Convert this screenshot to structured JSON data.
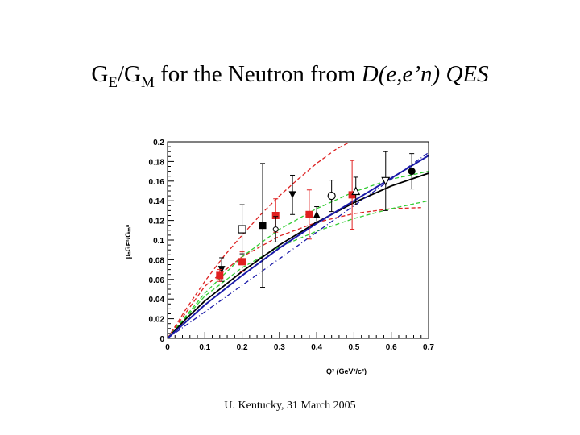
{
  "title": {
    "g": "G",
    "sub_e": "E",
    "slash": "/",
    "g2": "G",
    "sub_m": "M",
    "middle": " for the Neutron from ",
    "reaction": "D(e,e’n) QES"
  },
  "footer": "U. Kentucky, 31 March 2005",
  "chart_data": {
    "type": "scatter",
    "title": "",
    "xlabel": "Q² (GeV²/c²)",
    "ylabel": "μₙGᴇⁿ/Gₘⁿ",
    "xlim": [
      0,
      0.7
    ],
    "ylim": [
      0,
      0.2
    ],
    "x_ticks": [
      "0",
      "0.1",
      "0.2",
      "0.3",
      "0.4",
      "0.5",
      "0.6",
      "0.7"
    ],
    "y_ticks": [
      "0",
      "0.02",
      "0.04",
      "0.06",
      "0.08",
      "0.1",
      "0.12",
      "0.14",
      "0.16",
      "0.18",
      "0.2"
    ],
    "grid": false,
    "curves": [
      {
        "style": "red-dashed",
        "color": "#dd2222",
        "points": [
          [
            0,
            0
          ],
          [
            0.05,
            0.03
          ],
          [
            0.1,
            0.058
          ],
          [
            0.15,
            0.083
          ],
          [
            0.2,
            0.105
          ],
          [
            0.25,
            0.126
          ],
          [
            0.3,
            0.145
          ],
          [
            0.35,
            0.162
          ],
          [
            0.4,
            0.178
          ],
          [
            0.45,
            0.192
          ],
          [
            0.49,
            0.2
          ]
        ]
      },
      {
        "style": "red-dashed",
        "color": "#dd2222",
        "points": [
          [
            0,
            0
          ],
          [
            0.1,
            0.053
          ],
          [
            0.2,
            0.083
          ],
          [
            0.3,
            0.104
          ],
          [
            0.4,
            0.118
          ],
          [
            0.5,
            0.127
          ],
          [
            0.6,
            0.132
          ],
          [
            0.68,
            0.133
          ]
        ]
      },
      {
        "style": "green-dashed",
        "color": "#33cc33",
        "points": [
          [
            0,
            0
          ],
          [
            0.1,
            0.046
          ],
          [
            0.2,
            0.083
          ],
          [
            0.3,
            0.111
          ],
          [
            0.4,
            0.132
          ],
          [
            0.5,
            0.149
          ],
          [
            0.6,
            0.162
          ],
          [
            0.7,
            0.17
          ]
        ]
      },
      {
        "style": "green-dashed",
        "color": "#33cc33",
        "points": [
          [
            0,
            0
          ],
          [
            0.1,
            0.043
          ],
          [
            0.2,
            0.072
          ],
          [
            0.3,
            0.093
          ],
          [
            0.4,
            0.109
          ],
          [
            0.5,
            0.122
          ],
          [
            0.6,
            0.132
          ],
          [
            0.7,
            0.14
          ]
        ]
      },
      {
        "style": "black-solid",
        "color": "#000000",
        "points": [
          [
            0,
            0
          ],
          [
            0.05,
            0.02
          ],
          [
            0.1,
            0.038
          ],
          [
            0.2,
            0.068
          ],
          [
            0.3,
            0.095
          ],
          [
            0.4,
            0.118
          ],
          [
            0.5,
            0.138
          ],
          [
            0.6,
            0.155
          ],
          [
            0.7,
            0.168
          ]
        ]
      },
      {
        "style": "blue-solid",
        "color": "#1a1aa8",
        "points": [
          [
            0,
            0
          ],
          [
            0.1,
            0.034
          ],
          [
            0.2,
            0.064
          ],
          [
            0.3,
            0.092
          ],
          [
            0.4,
            0.117
          ],
          [
            0.5,
            0.14
          ],
          [
            0.6,
            0.163
          ],
          [
            0.7,
            0.186
          ]
        ]
      },
      {
        "style": "blue-dashdot",
        "color": "#1a1aa8",
        "points": [
          [
            0,
            0
          ],
          [
            0.1,
            0.027
          ],
          [
            0.2,
            0.054
          ],
          [
            0.3,
            0.081
          ],
          [
            0.4,
            0.108
          ],
          [
            0.5,
            0.135
          ],
          [
            0.6,
            0.162
          ],
          [
            0.7,
            0.189
          ]
        ]
      }
    ],
    "points": [
      {
        "x": 0.145,
        "y": 0.07,
        "err": 0.012,
        "marker": "tri-down",
        "color": "#000000"
      },
      {
        "x": 0.14,
        "y": 0.064,
        "err": 0.006,
        "marker": "square",
        "color": "#e02020"
      },
      {
        "x": 0.2,
        "y": 0.078,
        "err": 0.01,
        "marker": "square",
        "color": "#e02020"
      },
      {
        "x": 0.2,
        "y": 0.111,
        "err": 0.025,
        "marker": "open-square",
        "color": "#000000"
      },
      {
        "x": 0.255,
        "y": 0.115,
        "err": 0.063,
        "marker": "square",
        "color": "#000000"
      },
      {
        "x": 0.29,
        "y": 0.125,
        "err": 0.017,
        "marker": "square",
        "color": "#e02020"
      },
      {
        "x": 0.29,
        "y": 0.111,
        "err": 0.013,
        "marker": "open-circle-small",
        "color": "#000000"
      },
      {
        "x": 0.335,
        "y": 0.146,
        "err": 0.02,
        "marker": "tri-down",
        "color": "#000000"
      },
      {
        "x": 0.38,
        "y": 0.126,
        "err": 0.025,
        "marker": "square",
        "color": "#e02020"
      },
      {
        "x": 0.4,
        "y": 0.126,
        "err": 0.008,
        "marker": "tri-up",
        "color": "#000000"
      },
      {
        "x": 0.44,
        "y": 0.145,
        "err": 0.016,
        "marker": "open-circle",
        "color": "#000000"
      },
      {
        "x": 0.495,
        "y": 0.146,
        "err": 0.035,
        "marker": "square",
        "color": "#e02020"
      },
      {
        "x": 0.505,
        "y": 0.15,
        "err": 0.014,
        "marker": "open-tri-up",
        "color": "#000000"
      },
      {
        "x": 0.585,
        "y": 0.16,
        "err": 0.03,
        "marker": "open-tri-down",
        "color": "#000000"
      },
      {
        "x": 0.655,
        "y": 0.17,
        "err": 0.018,
        "marker": "circle",
        "color": "#000000"
      }
    ]
  }
}
